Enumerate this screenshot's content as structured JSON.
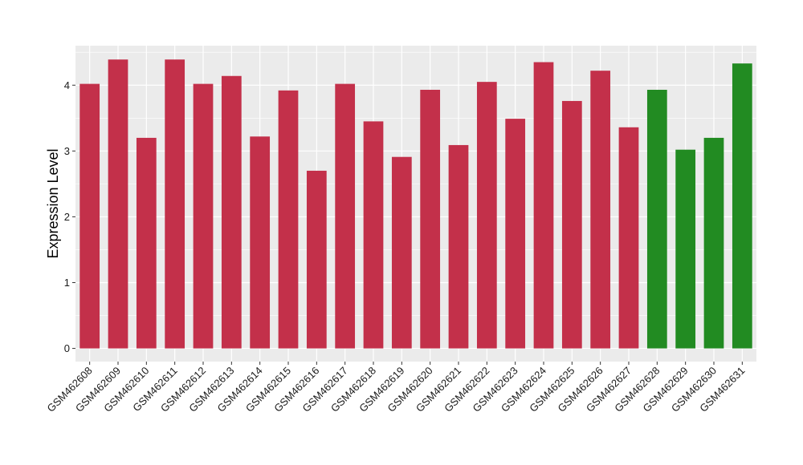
{
  "chart_data": {
    "type": "bar",
    "title": "",
    "xlabel": "",
    "ylabel": "Expression Level",
    "ylim": [
      -0.2,
      4.6
    ],
    "yticks": [
      0,
      1,
      2,
      3,
      4
    ],
    "ytick_labels": [
      "0",
      "1",
      "2",
      "3",
      "4"
    ],
    "grid": true,
    "categories": [
      "GSM462608",
      "GSM462609",
      "GSM462610",
      "GSM462611",
      "GSM462612",
      "GSM462613",
      "GSM462614",
      "GSM462615",
      "GSM462616",
      "GSM462617",
      "GSM462618",
      "GSM462619",
      "GSM462620",
      "GSM462621",
      "GSM462622",
      "GSM462623",
      "GSM462624",
      "GSM462625",
      "GSM462626",
      "GSM462627",
      "GSM462628",
      "GSM462629",
      "GSM462630",
      "GSM462631"
    ],
    "values": [
      4.02,
      4.39,
      3.2,
      4.39,
      4.02,
      4.14,
      3.22,
      3.92,
      2.7,
      4.02,
      3.45,
      2.91,
      3.93,
      3.09,
      4.05,
      3.49,
      4.35,
      3.76,
      4.22,
      3.36,
      3.93,
      3.02,
      3.2,
      4.33
    ],
    "bar_colors": [
      "#c3304a",
      "#c3304a",
      "#c3304a",
      "#c3304a",
      "#c3304a",
      "#c3304a",
      "#c3304a",
      "#c3304a",
      "#c3304a",
      "#c3304a",
      "#c3304a",
      "#c3304a",
      "#c3304a",
      "#c3304a",
      "#c3304a",
      "#c3304a",
      "#c3304a",
      "#c3304a",
      "#c3304a",
      "#c3304a",
      "#228b22",
      "#228b22",
      "#228b22",
      "#228b22"
    ],
    "panel_background": "#ebebeb",
    "grid_color": "#ffffff"
  }
}
